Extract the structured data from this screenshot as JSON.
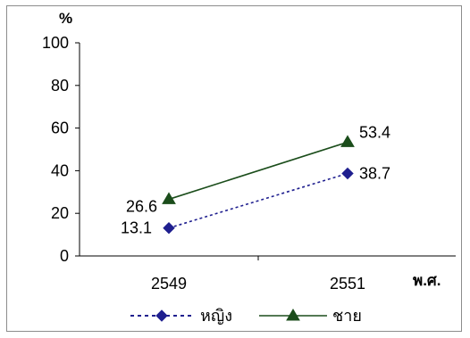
{
  "chart_data": {
    "type": "line",
    "title": "",
    "xlabel": "พ.ศ.",
    "ylabel": "%",
    "ylim": [
      0,
      100
    ],
    "yticks": [
      0,
      20,
      40,
      60,
      80,
      100
    ],
    "categories": [
      "2549",
      "2551"
    ],
    "grid": false,
    "legend_position": "bottom",
    "series": [
      {
        "name": "หญิง",
        "values": [
          13.1,
          38.7
        ],
        "labels": [
          "13.1",
          "38.7"
        ],
        "color": "#1f1f8f",
        "marker": "diamond",
        "line_style": "dotted"
      },
      {
        "name": "ชาย",
        "values": [
          26.6,
          53.4
        ],
        "labels": [
          "26.6",
          "53.4"
        ],
        "color": "#1b4d1b",
        "marker": "triangle",
        "line_style": "solid"
      }
    ]
  }
}
